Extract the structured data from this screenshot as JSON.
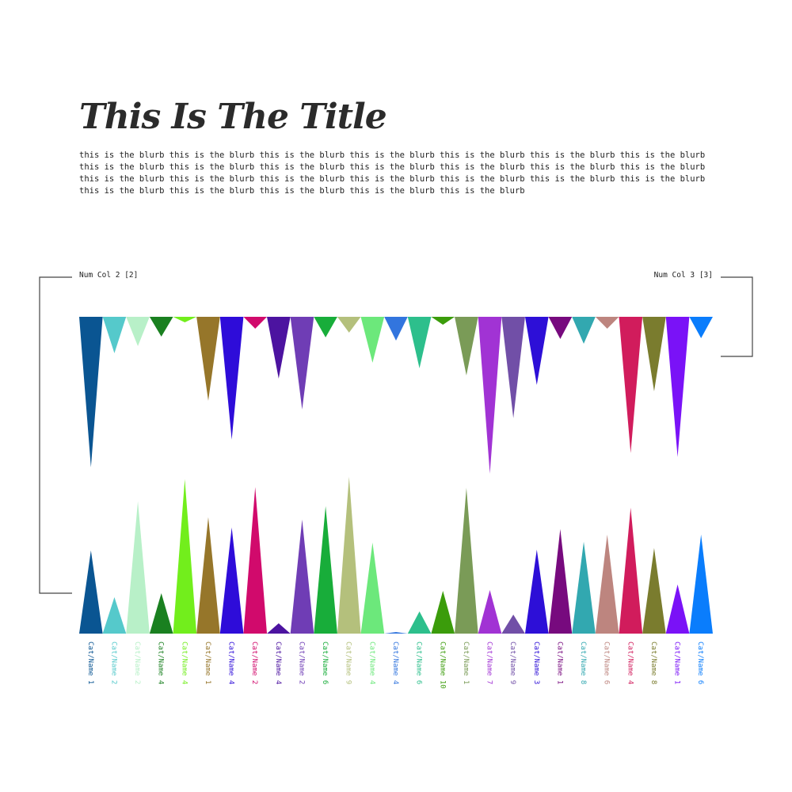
{
  "title": "This Is The Title",
  "blurb": "this is the blurb this is the blurb this is the blurb this is the blurb this is the blurb this is the blurb this is the blurb this is the blurb this is the blurb this is the blurb this is the blurb this is the blurb this is the blurb this is the blurb this is the blurb this is the blurb this is the blurb this is the blurb this is the blurb this is the blurb this is the blurb this is the blurb this is the blurb this is the blurb this is the blurb this is the blurb",
  "chart_data": {
    "type": "bar",
    "style": "triangle",
    "categories": [
      "Cat/Name 1",
      "Cat/Name 2",
      "Cat/Name 2",
      "Cat/Name 4",
      "Cat/Name 4",
      "Cat/Name 1",
      "Cat/Name 4",
      "Cat/Name 2",
      "Cat/Name 4",
      "Cat/Name 2",
      "Cat/Name 6",
      "Cat/Name 9",
      "Cat/Name 4",
      "Cat/Name 4",
      "Cat/Name 6",
      "Cat/Name 10",
      "Cat/Name 1",
      "Cat/Name 7",
      "Cat/Name 9",
      "Cat/Name 3",
      "Cat/Name 1",
      "Cat/Name 8",
      "Cat/Name 6",
      "Cat/Name 4",
      "Cat/Name 8",
      "Cat/Name 1",
      "Cat/Name 6"
    ],
    "colors": [
      "#0a5592",
      "#55c9cb",
      "#b8f0c8",
      "#1a8020",
      "#72ee1c",
      "#96762a",
      "#2e0cd9",
      "#d10a6c",
      "#4c13a0",
      "#6f3db5",
      "#18ad3a",
      "#b4c07c",
      "#6ce87b",
      "#3275de",
      "#2dbf8c",
      "#3b9c0b",
      "#7a9b57",
      "#a133d4",
      "#714fa7",
      "#2d0fd7",
      "#770a7e",
      "#32a8b0",
      "#bd857f",
      "#d11c5c",
      "#7a7c2e",
      "#7a12f7",
      "#0a7dfc"
    ],
    "series": [
      {
        "name": "Num Col 2 [2]",
        "side": "top",
        "values": [
          190,
          46,
          37,
          25,
          7,
          106,
          155,
          15,
          78,
          117,
          26,
          20,
          58,
          30,
          65,
          10,
          74,
          198,
          128,
          86,
          28,
          34,
          15,
          172,
          94,
          177,
          27
        ]
      },
      {
        "name": "Num Col 3 [3]",
        "side": "bottom",
        "values": [
          105,
          46,
          167,
          51,
          195,
          147,
          134,
          185,
          13,
          144,
          161,
          198,
          115,
          2,
          28,
          54,
          184,
          55,
          24,
          106,
          132,
          116,
          125,
          159,
          108,
          62,
          125
        ]
      }
    ]
  }
}
